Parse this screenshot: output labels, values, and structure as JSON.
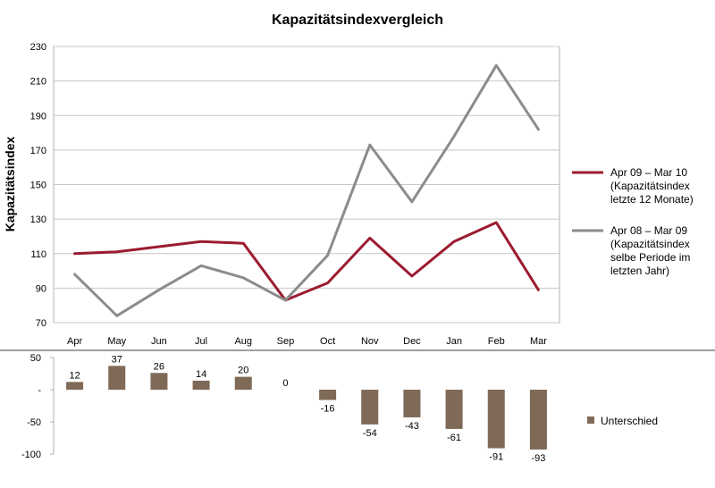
{
  "chart_data": [
    {
      "type": "line",
      "title": "Kapazitätsindexvergleich",
      "ylabel": "Kapazitätsindex",
      "categories": [
        "Apr",
        "May",
        "Jun",
        "Jul",
        "Aug",
        "Sep",
        "Oct",
        "Nov",
        "Dec",
        "Jan",
        "Feb",
        "Mar"
      ],
      "ylim": [
        70,
        230
      ],
      "yticks": [
        70,
        90,
        110,
        130,
        150,
        170,
        190,
        210,
        230
      ],
      "grid": true,
      "legend": "right",
      "series": [
        {
          "name_lines": [
            "Apr 09 – Mar 10",
            "(Kapazitätsindex",
            "letzte 12 Monate)"
          ],
          "color": "#9b1b30",
          "values": [
            110,
            111,
            114,
            117,
            116,
            83,
            93,
            119,
            97,
            117,
            128,
            89
          ]
        },
        {
          "name_lines": [
            "Apr 08 – Mar 09",
            "(Kapazitätsindex",
            "selbe Periode im",
            "letzten Jahr)"
          ],
          "color": "#8c8c8c",
          "values": [
            98,
            74,
            89,
            103,
            96,
            83,
            109,
            173,
            140,
            178,
            219,
            182
          ]
        }
      ]
    },
    {
      "type": "bar",
      "categories": [
        "Apr",
        "May",
        "Jun",
        "Jul",
        "Aug",
        "Sep",
        "Oct",
        "Nov",
        "Dec",
        "Jan",
        "Feb",
        "Mar"
      ],
      "ylim": [
        -100,
        50
      ],
      "yticks": [
        50,
        0,
        -50,
        -100
      ],
      "ytick_labels": [
        "50",
        "-",
        "-50",
        "-100"
      ],
      "legend": "right",
      "series": [
        {
          "name": "Unterschied",
          "color": "#7f6a58",
          "values": [
            12,
            37,
            26,
            14,
            20,
            0,
            -16,
            -54,
            -43,
            -61,
            -91,
            -93
          ],
          "labels": [
            "12",
            "37",
            "26",
            "14",
            "20",
            "0",
            "-16",
            "-54",
            "-43",
            "-61",
            "-91",
            "-93"
          ]
        }
      ]
    }
  ]
}
